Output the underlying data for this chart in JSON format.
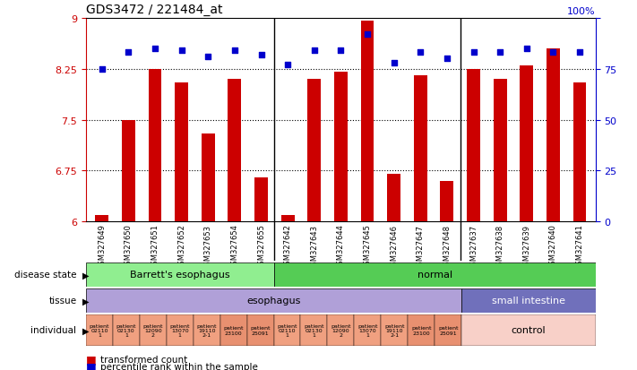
{
  "title": "GDS3472 / 221484_at",
  "samples": [
    "GSM327649",
    "GSM327650",
    "GSM327651",
    "GSM327652",
    "GSM327653",
    "GSM327654",
    "GSM327655",
    "GSM327642",
    "GSM327643",
    "GSM327644",
    "GSM327645",
    "GSM327646",
    "GSM327647",
    "GSM327648",
    "GSM327637",
    "GSM327638",
    "GSM327639",
    "GSM327640",
    "GSM327641"
  ],
  "bar_values": [
    6.1,
    7.5,
    8.25,
    8.05,
    7.3,
    8.1,
    6.65,
    6.1,
    8.1,
    8.2,
    8.95,
    6.7,
    8.15,
    6.6,
    8.25,
    8.1,
    8.3,
    8.55,
    8.05
  ],
  "dot_values": [
    75,
    83,
    85,
    84,
    81,
    84,
    82,
    77,
    84,
    84,
    92,
    78,
    83,
    80,
    83,
    83,
    85,
    83,
    83
  ],
  "ylim_left": [
    6,
    9
  ],
  "ylim_right": [
    0,
    100
  ],
  "yticks_left": [
    6,
    6.75,
    7.5,
    8.25,
    9
  ],
  "yticks_right": [
    0,
    25,
    50,
    75,
    100
  ],
  "bar_color": "#cc0000",
  "dot_color": "#0000cc",
  "plot_bg": "#ffffff",
  "xtick_bg": "#d0d0d0",
  "disease_state": [
    {
      "label": "Barrett's esophagus",
      "start": 0,
      "end": 7,
      "color": "#90ee90"
    },
    {
      "label": "normal",
      "start": 7,
      "end": 19,
      "color": "#55cc55"
    }
  ],
  "tissue": [
    {
      "label": "esophagus",
      "start": 0,
      "end": 14,
      "color": "#b0a0d8"
    },
    {
      "label": "small intestine",
      "start": 14,
      "end": 19,
      "color": "#7070bb"
    }
  ],
  "individual_cells": [
    {
      "label": "patient\n02110\n1",
      "start": 0,
      "end": 1,
      "color": "#f0a080"
    },
    {
      "label": "patient\n02130\n1",
      "start": 1,
      "end": 2,
      "color": "#f0a080"
    },
    {
      "label": "patient\n12090\n2",
      "start": 2,
      "end": 3,
      "color": "#f0a080"
    },
    {
      "label": "patient\n13070\n1",
      "start": 3,
      "end": 4,
      "color": "#f0a080"
    },
    {
      "label": "patient\n19110\n2-1",
      "start": 4,
      "end": 5,
      "color": "#f0a080"
    },
    {
      "label": "patient\n23100",
      "start": 5,
      "end": 6,
      "color": "#e89070"
    },
    {
      "label": "patient\n25091",
      "start": 6,
      "end": 7,
      "color": "#e89070"
    },
    {
      "label": "patient\n02110\n1",
      "start": 7,
      "end": 8,
      "color": "#f0a080"
    },
    {
      "label": "patient\n02130\n1",
      "start": 8,
      "end": 9,
      "color": "#f0a080"
    },
    {
      "label": "patient\n12090\n2",
      "start": 9,
      "end": 10,
      "color": "#f0a080"
    },
    {
      "label": "patient\n13070\n1",
      "start": 10,
      "end": 11,
      "color": "#f0a080"
    },
    {
      "label": "patient\n19110\n2-1",
      "start": 11,
      "end": 12,
      "color": "#f0a080"
    },
    {
      "label": "patient\n23100",
      "start": 12,
      "end": 13,
      "color": "#e89070"
    },
    {
      "label": "patient\n25091",
      "start": 13,
      "end": 14,
      "color": "#e89070"
    },
    {
      "label": "control",
      "start": 14,
      "end": 19,
      "color": "#f8d0c8"
    }
  ],
  "row_label_disease": "disease state",
  "row_label_tissue": "tissue",
  "row_label_individual": "individual",
  "legend_bar": "transformed count",
  "legend_dot": "percentile rank within the sample"
}
